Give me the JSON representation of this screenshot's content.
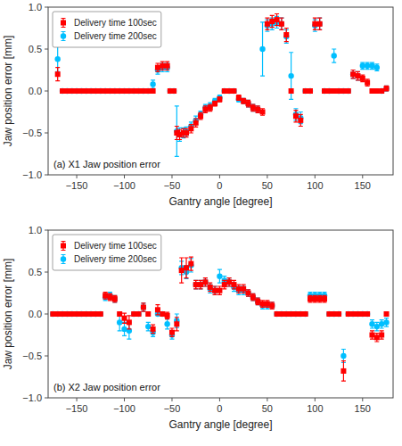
{
  "chart_data": [
    {
      "type": "scatter",
      "title": "(a) X1 Jaw position error",
      "xlabel": "Gantry angle [degree]",
      "ylabel": "Jaw position error [mm]",
      "x": [
        -170,
        -165,
        -160,
        -155,
        -150,
        -145,
        -140,
        -135,
        -130,
        -125,
        -120,
        -115,
        -110,
        -105,
        -100,
        -95,
        -90,
        -85,
        -80,
        -75,
        -70,
        -65,
        -60,
        -55,
        -52,
        -48,
        -45,
        -42,
        -38,
        -35,
        -30,
        -25,
        -20,
        -15,
        -10,
        -5,
        0,
        5,
        10,
        15,
        20,
        25,
        30,
        35,
        40,
        45,
        50,
        55,
        60,
        65,
        70,
        75,
        80,
        85,
        90,
        95,
        100,
        105,
        110,
        115,
        120,
        125,
        130,
        135,
        140,
        145,
        150,
        155,
        160,
        165,
        170,
        175
      ],
      "series": [
        {
          "name": "Delivery time 100sec",
          "color": "#FF0000",
          "marker": "square",
          "values": [
            0.2,
            0.0,
            0.0,
            0.0,
            0.0,
            0.0,
            0.0,
            0.0,
            0.0,
            0.0,
            0.0,
            0.0,
            0.0,
            0.0,
            0.0,
            0.0,
            0.0,
            0.0,
            0.0,
            0.0,
            0.0,
            0.28,
            0.3,
            0.3,
            0.0,
            0.0,
            -0.5,
            -0.52,
            -0.5,
            -0.5,
            -0.45,
            -0.38,
            -0.3,
            -0.22,
            -0.2,
            -0.15,
            -0.1,
            0.0,
            0.0,
            0.0,
            -0.08,
            -0.12,
            -0.15,
            -0.2,
            -0.22,
            -0.25,
            0.8,
            0.83,
            0.85,
            0.8,
            0.67,
            0.0,
            -0.3,
            -0.35,
            0.0,
            0.0,
            0.8,
            0.8,
            0.0,
            0.0,
            0.0,
            0.0,
            0.0,
            0.0,
            0.2,
            0.18,
            0.15,
            0.1,
            0.0,
            0.0,
            0.0,
            0.03
          ],
          "errors": [
            0.08,
            0.0,
            0.0,
            0.0,
            0.0,
            0.0,
            0.0,
            0.0,
            0.0,
            0.0,
            0.0,
            0.0,
            0.0,
            0.0,
            0.0,
            0.0,
            0.0,
            0.0,
            0.0,
            0.0,
            0.0,
            0.05,
            0.05,
            0.05,
            0.0,
            0.0,
            0.08,
            0.06,
            0.05,
            0.05,
            0.05,
            0.05,
            0.04,
            0.04,
            0.04,
            0.03,
            0.03,
            0.0,
            0.0,
            0.0,
            0.03,
            0.03,
            0.04,
            0.04,
            0.04,
            0.04,
            0.07,
            0.07,
            0.07,
            0.07,
            0.08,
            0.0,
            0.07,
            0.07,
            0.0,
            0.0,
            0.07,
            0.07,
            0.0,
            0.0,
            0.0,
            0.0,
            0.0,
            0.0,
            0.05,
            0.05,
            0.04,
            0.04,
            0.0,
            0.0,
            0.0,
            0.03
          ]
        },
        {
          "name": "Delivery time 200sec",
          "color": "#00BFFF",
          "marker": "circle",
          "values": [
            0.38,
            0.0,
            0.0,
            0.0,
            0.0,
            0.0,
            0.0,
            0.0,
            0.0,
            0.0,
            0.0,
            0.0,
            0.0,
            0.0,
            0.0,
            0.0,
            0.0,
            0.0,
            0.0,
            0.0,
            0.08,
            0.25,
            0.28,
            0.28,
            0.0,
            0.0,
            -0.48,
            -0.52,
            -0.5,
            -0.48,
            -0.42,
            -0.35,
            -0.28,
            -0.2,
            -0.18,
            -0.12,
            -0.08,
            0.0,
            0.0,
            0.0,
            -0.1,
            -0.12,
            -0.15,
            -0.2,
            -0.22,
            0.5,
            0.78,
            0.8,
            0.82,
            0.8,
            0.65,
            0.18,
            -0.28,
            -0.32,
            0.0,
            0.0,
            0.78,
            0.8,
            0.0,
            0.0,
            0.42,
            0.0,
            0.0,
            0.0,
            0.2,
            0.18,
            0.3,
            0.3,
            0.3,
            0.28,
            0.0,
            0.03
          ],
          "errors": [
            0.15,
            0.0,
            0.0,
            0.0,
            0.0,
            0.0,
            0.0,
            0.0,
            0.0,
            0.0,
            0.0,
            0.0,
            0.0,
            0.0,
            0.0,
            0.0,
            0.0,
            0.0,
            0.0,
            0.0,
            0.05,
            0.05,
            0.05,
            0.05,
            0.0,
            0.0,
            0.3,
            0.08,
            0.06,
            0.05,
            0.05,
            0.05,
            0.04,
            0.04,
            0.04,
            0.03,
            0.03,
            0.0,
            0.0,
            0.0,
            0.03,
            0.03,
            0.04,
            0.04,
            0.04,
            0.32,
            0.07,
            0.07,
            0.07,
            0.07,
            0.08,
            0.28,
            0.07,
            0.07,
            0.0,
            0.0,
            0.07,
            0.07,
            0.0,
            0.0,
            0.08,
            0.0,
            0.0,
            0.0,
            0.05,
            0.05,
            0.04,
            0.04,
            0.04,
            0.04,
            0.0,
            0.03
          ]
        }
      ],
      "xlim": [
        -180,
        182
      ],
      "ylim": [
        -1.0,
        1.0
      ],
      "xticks": [
        {
          "value": -150,
          "label": "−150"
        },
        {
          "value": -100,
          "label": "−100"
        },
        {
          "value": -50,
          "label": "−50"
        },
        0,
        50,
        100,
        150
      ],
      "yticks": [
        {
          "value": -1.0,
          "label": "−1.0"
        },
        {
          "value": -0.5,
          "label": "−0.5"
        },
        {
          "value": 0.0,
          "label": "0.0"
        },
        {
          "value": 0.5,
          "label": "0.5"
        },
        {
          "value": 1.0,
          "label": "1.0"
        }
      ],
      "legend": "upper left"
    },
    {
      "type": "scatter",
      "title": "(b) X2 Jaw position error",
      "xlabel": "Gantry angle [degree]",
      "ylabel": "Jaw position error [mm]",
      "x": [
        -175,
        -170,
        -165,
        -160,
        -155,
        -150,
        -145,
        -140,
        -135,
        -130,
        -125,
        -120,
        -115,
        -110,
        -105,
        -100,
        -95,
        -90,
        -85,
        -80,
        -75,
        -70,
        -65,
        -60,
        -55,
        -50,
        -45,
        -40,
        -35,
        -30,
        -25,
        -20,
        -15,
        -10,
        -5,
        0,
        5,
        10,
        15,
        20,
        25,
        30,
        35,
        40,
        45,
        50,
        55,
        60,
        65,
        70,
        75,
        80,
        85,
        90,
        95,
        100,
        105,
        110,
        115,
        120,
        125,
        130,
        135,
        140,
        145,
        150,
        155,
        160,
        165,
        170,
        175
      ],
      "series": [
        {
          "name": "Delivery time 100sec",
          "color": "#FF0000",
          "marker": "square",
          "values": [
            0.0,
            0.0,
            0.0,
            0.0,
            0.0,
            0.0,
            0.0,
            0.0,
            0.0,
            0.0,
            0.0,
            0.22,
            0.2,
            0.18,
            0.0,
            -0.05,
            -0.1,
            0.0,
            0.0,
            0.08,
            0.0,
            -0.18,
            0.05,
            0.0,
            -0.02,
            -0.22,
            -0.12,
            0.52,
            0.55,
            0.6,
            0.35,
            0.35,
            0.38,
            0.32,
            0.28,
            0.28,
            0.35,
            0.38,
            0.35,
            0.3,
            0.3,
            0.25,
            0.2,
            0.15,
            0.12,
            0.12,
            0.1,
            0.0,
            0.0,
            0.0,
            0.0,
            0.0,
            0.0,
            0.0,
            0.18,
            0.18,
            0.18,
            0.18,
            0.0,
            0.0,
            0.0,
            -0.68,
            0.0,
            0.0,
            0.0,
            0.0,
            0.0,
            -0.25,
            -0.28,
            -0.25,
            0.0
          ],
          "errors": [
            0.0,
            0.0,
            0.0,
            0.0,
            0.0,
            0.0,
            0.0,
            0.0,
            0.0,
            0.0,
            0.0,
            0.04,
            0.04,
            0.04,
            0.0,
            0.06,
            0.08,
            0.0,
            0.0,
            0.05,
            0.0,
            0.05,
            0.06,
            0.0,
            0.04,
            0.05,
            0.08,
            0.15,
            0.12,
            0.08,
            0.05,
            0.05,
            0.05,
            0.05,
            0.05,
            0.05,
            0.05,
            0.05,
            0.05,
            0.05,
            0.05,
            0.04,
            0.04,
            0.04,
            0.04,
            0.04,
            0.04,
            0.0,
            0.0,
            0.0,
            0.0,
            0.0,
            0.0,
            0.0,
            0.04,
            0.04,
            0.04,
            0.04,
            0.0,
            0.0,
            0.0,
            0.12,
            0.0,
            0.0,
            0.0,
            0.0,
            0.0,
            0.05,
            0.05,
            0.05,
            0.0
          ]
        },
        {
          "name": "Delivery time 200sec",
          "color": "#00BFFF",
          "marker": "circle",
          "values": [
            0.0,
            0.0,
            0.0,
            0.0,
            0.0,
            0.0,
            0.0,
            0.0,
            0.0,
            0.0,
            0.0,
            0.2,
            0.22,
            0.18,
            -0.1,
            -0.18,
            -0.2,
            0.0,
            0.0,
            0.08,
            -0.15,
            -0.22,
            0.0,
            0.0,
            -0.12,
            -0.25,
            -0.08,
            0.55,
            0.5,
            0.58,
            0.35,
            0.35,
            0.38,
            0.3,
            0.28,
            0.45,
            0.4,
            0.38,
            0.32,
            0.28,
            0.28,
            0.25,
            0.2,
            0.15,
            0.1,
            0.1,
            0.1,
            0.0,
            0.0,
            0.0,
            0.0,
            0.0,
            0.0,
            0.0,
            0.22,
            0.22,
            0.22,
            0.22,
            0.0,
            0.0,
            0.0,
            -0.5,
            0.0,
            0.0,
            0.0,
            0.0,
            0.0,
            -0.12,
            -0.15,
            -0.12,
            -0.1
          ],
          "errors": [
            0.0,
            0.0,
            0.0,
            0.0,
            0.0,
            0.0,
            0.0,
            0.0,
            0.0,
            0.0,
            0.0,
            0.04,
            0.04,
            0.04,
            0.1,
            0.08,
            0.1,
            0.0,
            0.0,
            0.05,
            0.05,
            0.05,
            0.0,
            0.0,
            0.06,
            0.05,
            0.08,
            0.08,
            0.08,
            0.08,
            0.05,
            0.05,
            0.05,
            0.05,
            0.05,
            0.08,
            0.05,
            0.05,
            0.05,
            0.05,
            0.05,
            0.04,
            0.04,
            0.04,
            0.04,
            0.04,
            0.04,
            0.0,
            0.0,
            0.0,
            0.0,
            0.0,
            0.0,
            0.0,
            0.04,
            0.04,
            0.04,
            0.04,
            0.0,
            0.0,
            0.0,
            0.08,
            0.0,
            0.0,
            0.0,
            0.0,
            0.0,
            0.05,
            0.05,
            0.05,
            0.05
          ]
        }
      ],
      "xlim": [
        -180,
        182
      ],
      "ylim": [
        -1.0,
        1.0
      ],
      "xticks": [
        {
          "value": -150,
          "label": "−150"
        },
        {
          "value": -100,
          "label": "−100"
        },
        {
          "value": -50,
          "label": "−50"
        },
        0,
        50,
        100,
        150
      ],
      "yticks": [
        {
          "value": -1.0,
          "label": "−1.0"
        },
        {
          "value": -0.5,
          "label": "−0.5"
        },
        {
          "value": 0.0,
          "label": "0.0"
        },
        {
          "value": 0.5,
          "label": "0.5"
        },
        {
          "value": 1.0,
          "label": "1.0"
        }
      ],
      "legend": "upper left"
    }
  ]
}
